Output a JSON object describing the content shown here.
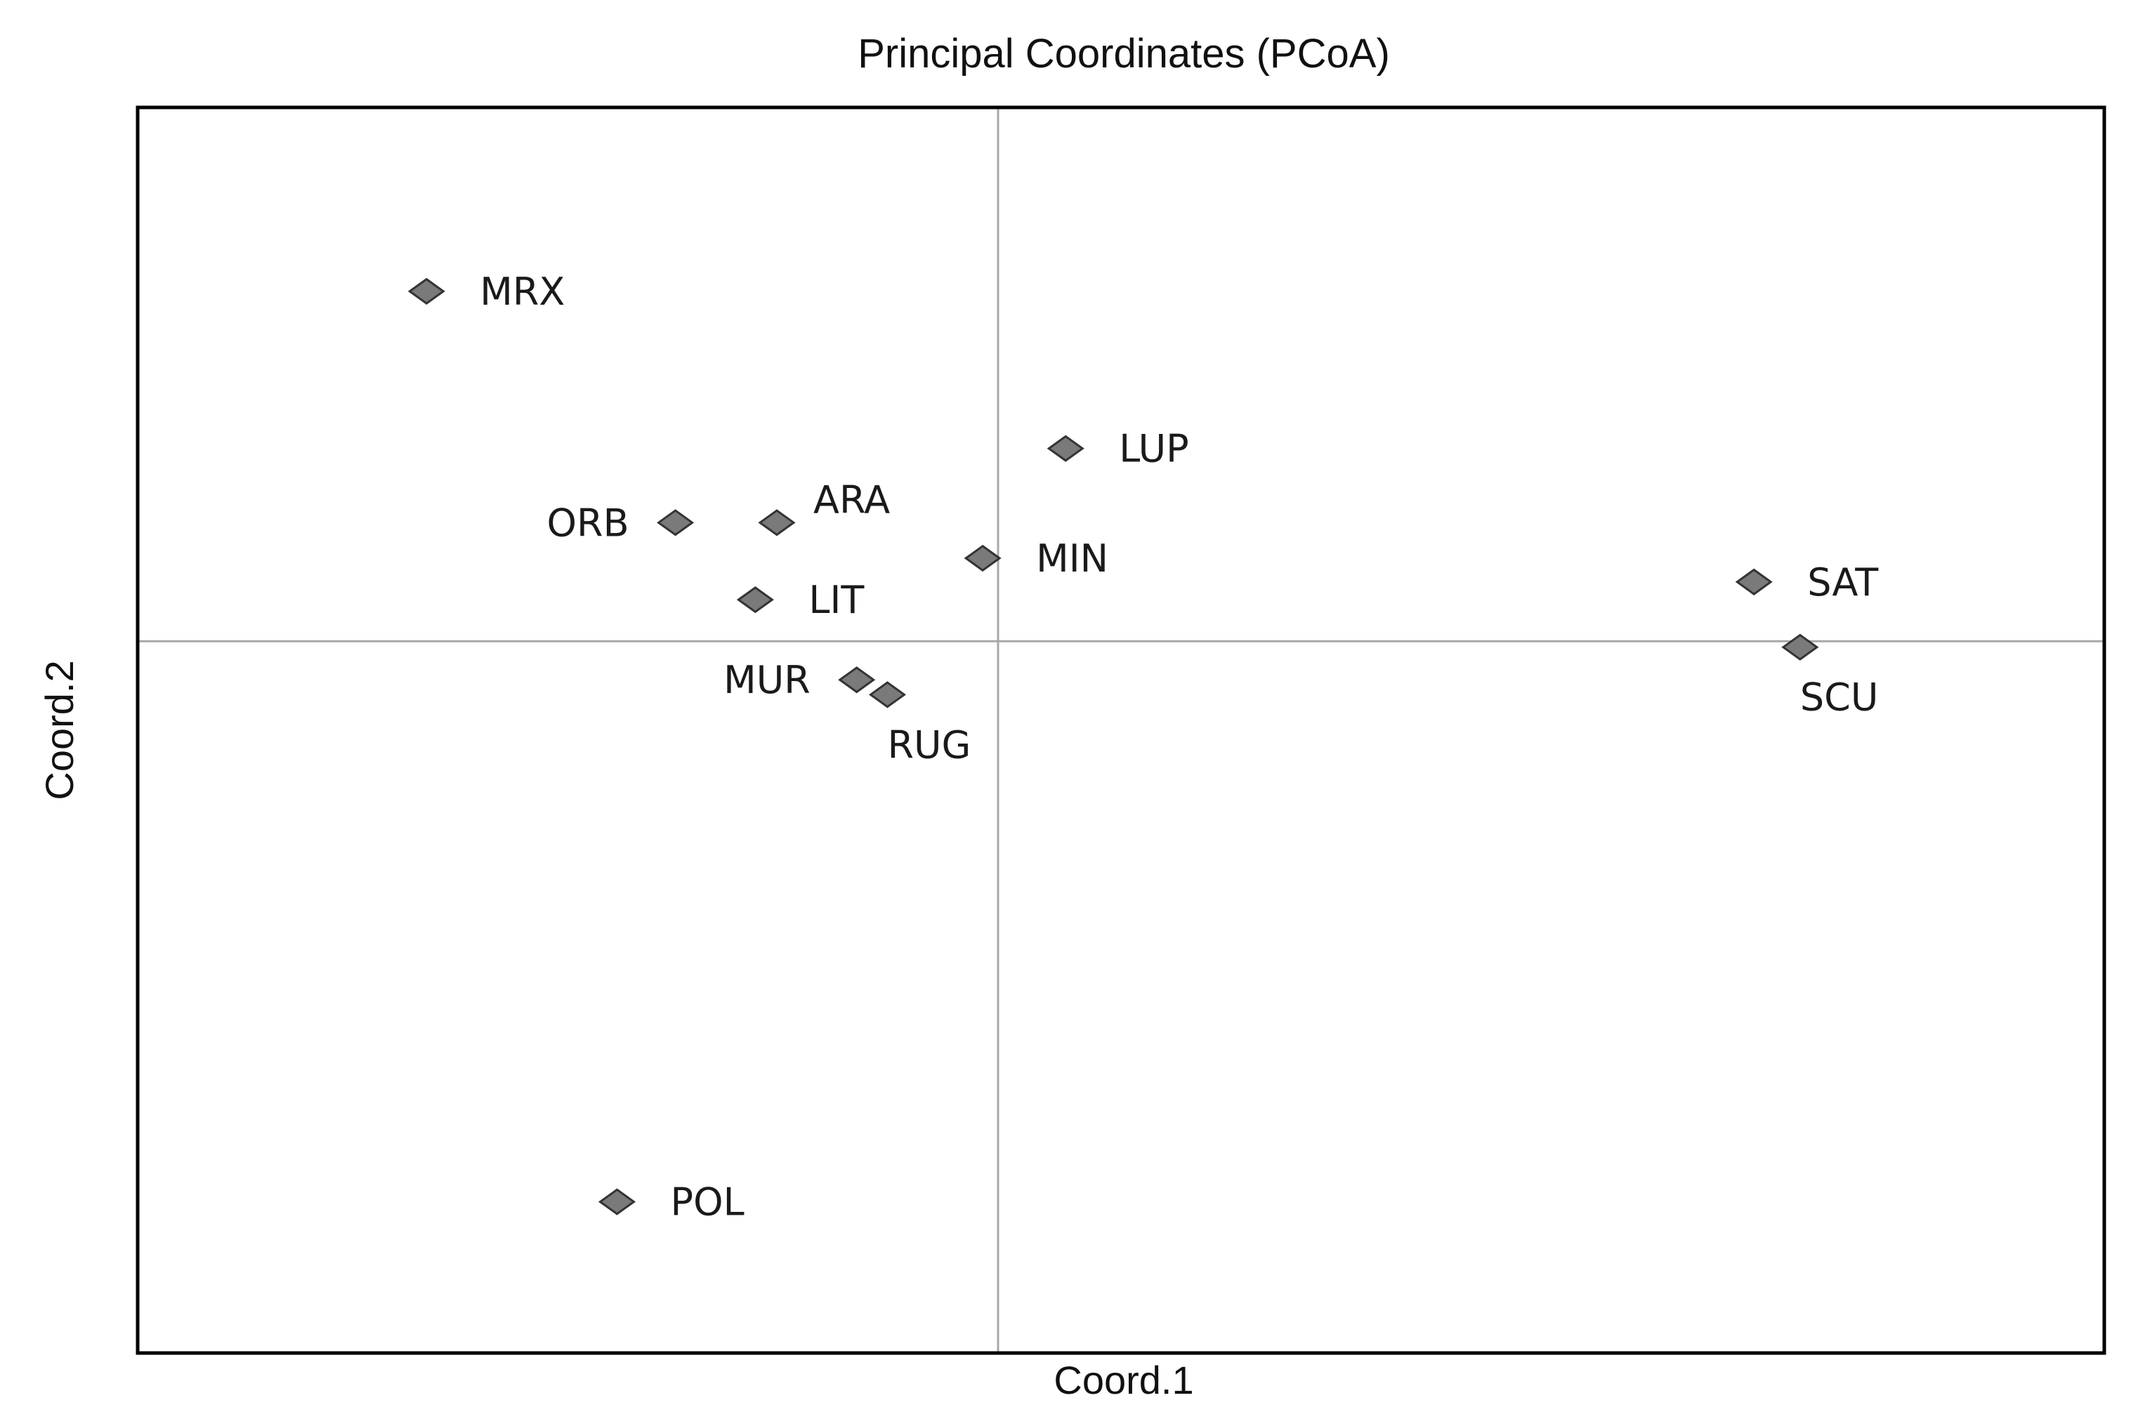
{
  "chart_data": {
    "type": "scatter",
    "title": "Principal Coordinates (PCoA)",
    "xlabel": "Coord.1",
    "ylabel": "Coord.2",
    "xlim": [
      -2.8,
      3.6
    ],
    "ylim": [
      -2.4,
      1.8
    ],
    "grid": false,
    "zero_lines": true,
    "marker": "diamond",
    "marker_color": "#7a7a7a",
    "points": [
      {
        "label": "MRX",
        "x": -1.86,
        "y": 1.18,
        "label_pos": "right"
      },
      {
        "label": "LUP",
        "x": 0.22,
        "y": 0.65,
        "label_pos": "right"
      },
      {
        "label": "ORB",
        "x": -1.05,
        "y": 0.4,
        "label_pos": "left"
      },
      {
        "label": "ARA",
        "x": -0.72,
        "y": 0.4,
        "label_pos": "upper-right"
      },
      {
        "label": "MIN",
        "x": -0.05,
        "y": 0.28,
        "label_pos": "right"
      },
      {
        "label": "LIT",
        "x": -0.79,
        "y": 0.14,
        "label_pos": "right"
      },
      {
        "label": "SAT",
        "x": 2.46,
        "y": 0.2,
        "label_pos": "right"
      },
      {
        "label": "SCU",
        "x": 2.61,
        "y": -0.02,
        "label_pos": "below"
      },
      {
        "label": "MUR",
        "x": -0.46,
        "y": -0.13,
        "label_pos": "left"
      },
      {
        "label": "RUG",
        "x": -0.36,
        "y": -0.18,
        "label_pos": "below"
      },
      {
        "label": "POL",
        "x": -1.24,
        "y": -1.89,
        "label_pos": "right"
      }
    ]
  }
}
